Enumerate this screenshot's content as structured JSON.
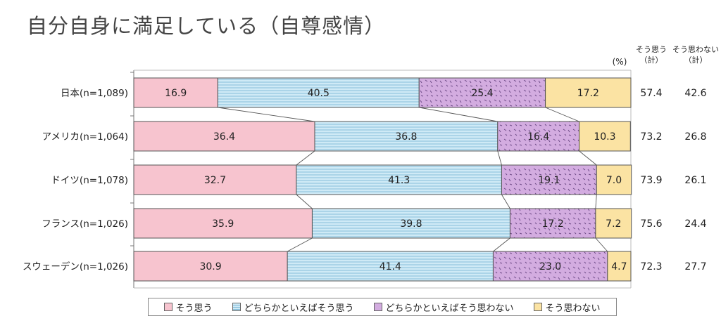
{
  "title": "自分自身に満足している（自尊感情）",
  "unit": "(%)",
  "total_headers": [
    "そう思う\n（計）",
    "そう思わない\n（計）"
  ],
  "colors": {
    "agree": "#f7c4cf",
    "somewhat_agree": "#bfe3f2",
    "somewhat_disagree": "#cfa6d9",
    "disagree": "#fbe3a3"
  },
  "chart_data": {
    "type": "bar",
    "orientation": "horizontal",
    "stacked": true,
    "normalized": true,
    "categories": [
      "日本(n=1,089)",
      "アメリカ(n=1,064)",
      "ドイツ(n=1,078)",
      "フランス(n=1,026)",
      "スウェーデン(n=1,026)"
    ],
    "series": [
      {
        "name": "そう思う",
        "values": [
          16.9,
          36.4,
          32.7,
          35.9,
          30.9
        ]
      },
      {
        "name": "どちらかといえばそう思う",
        "values": [
          40.5,
          36.8,
          41.3,
          39.8,
          41.4
        ]
      },
      {
        "name": "どちらかといえばそう思わない",
        "values": [
          25.4,
          16.4,
          19.1,
          17.2,
          23.0
        ]
      },
      {
        "name": "そう思わない",
        "values": [
          17.2,
          10.3,
          7.0,
          7.2,
          4.7
        ]
      }
    ],
    "totals": {
      "agree": [
        57.4,
        73.2,
        73.9,
        75.6,
        72.3
      ],
      "disagree": [
        42.6,
        26.8,
        26.1,
        24.4,
        27.7
      ]
    },
    "xlim": [
      0,
      100
    ],
    "legend_position": "bottom"
  }
}
